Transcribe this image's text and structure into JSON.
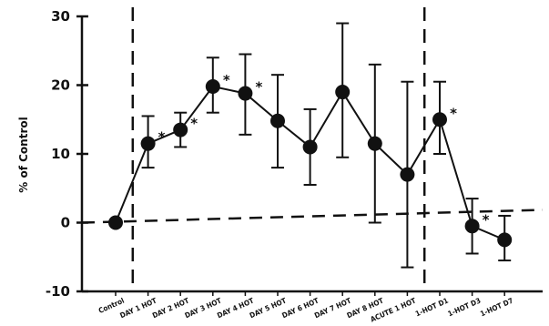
{
  "chart_data": {
    "type": "line",
    "title": "",
    "xlabel": "",
    "ylabel": "% of Control",
    "ylim": [
      -10,
      30
    ],
    "yticks": [
      -10,
      0,
      10,
      20,
      30
    ],
    "ytick_labels": [
      "-10",
      "0",
      "10",
      "20",
      "30"
    ],
    "grid": false,
    "legend": "none",
    "categories": [
      "Control",
      "DAY 1 HOT",
      "DAY 2 HOT",
      "DAY 3 HOT",
      "DAY 4 HOT",
      "DAY 5 HOT",
      "DAY 6 HOT",
      "DAY 7 HOT",
      "DAY 8 HOT",
      "ACUTE 1 HOT",
      "1-HOT D1",
      "1-HOT D3",
      "1-HOT D7"
    ],
    "series": [
      {
        "values": [
          0,
          11.5,
          13.5,
          19.8,
          18.8,
          14.8,
          11,
          19,
          11.5,
          7,
          15,
          -0.5,
          -2.5
        ],
        "err_low": [
          0,
          8,
          11,
          16,
          12.8,
          8,
          5.5,
          9.5,
          0,
          -6.5,
          10,
          -4.5,
          -5.5
        ],
        "err_high": [
          0,
          15.5,
          16,
          24,
          24.5,
          21.5,
          16.5,
          29,
          23,
          20.5,
          20.5,
          3.5,
          1
        ]
      }
    ],
    "significance_markers": [
      "*",
      "*",
      "*",
      "*",
      "*",
      "*"
    ],
    "significant_indices": [
      1,
      2,
      3,
      4,
      10,
      11
    ],
    "reference_line_y": 0,
    "phase_dividers_after": [
      0,
      9
    ]
  }
}
